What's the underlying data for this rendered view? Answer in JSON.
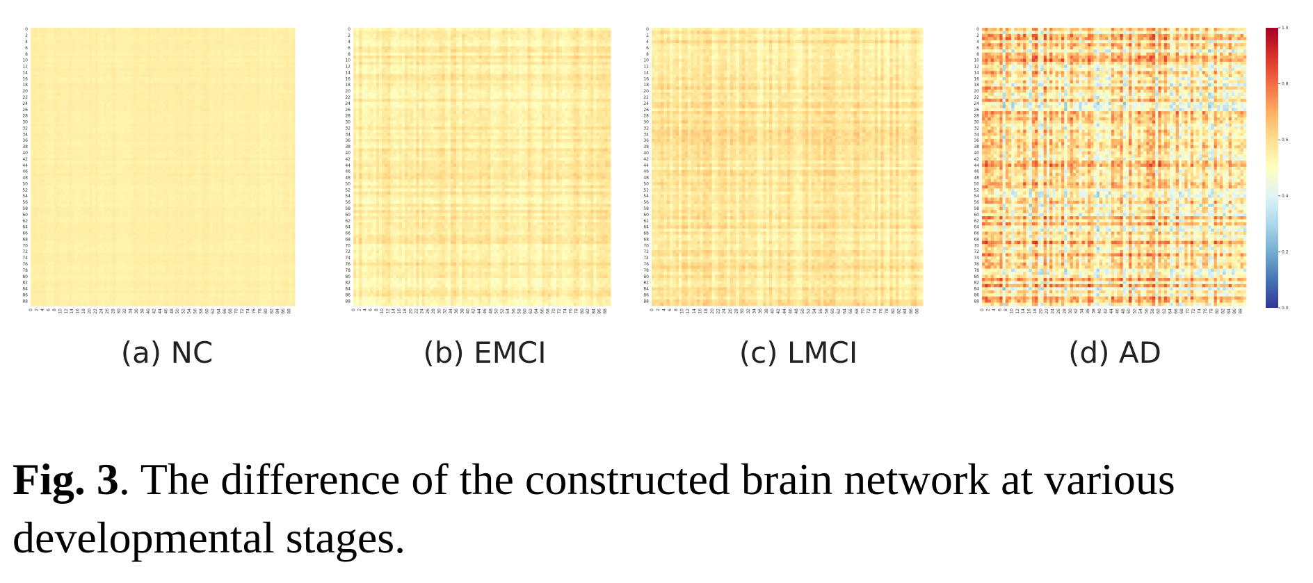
{
  "chart_data": {
    "type": "heatmap",
    "value_range": [
      0.0,
      1.0
    ],
    "colormap": "RdYlBu_r",
    "matrix_size": 90,
    "tick_labels": [
      "0",
      "2",
      "4",
      "6",
      "8",
      "10",
      "12",
      "14",
      "16",
      "18",
      "20",
      "22",
      "24",
      "26",
      "28",
      "30",
      "32",
      "34",
      "36",
      "38",
      "40",
      "42",
      "44",
      "46",
      "48",
      "50",
      "52",
      "54",
      "56",
      "58",
      "60",
      "62",
      "64",
      "66",
      "68",
      "70",
      "72",
      "74",
      "76",
      "78",
      "80",
      "82",
      "84",
      "86",
      "88"
    ],
    "colorbar": {
      "ticks": [
        0.0,
        0.2,
        0.4,
        0.6,
        0.8,
        1.0
      ],
      "tick_labels": [
        "0.0",
        "0.2",
        "0.4",
        "0.6",
        "0.8",
        "1.0"
      ]
    },
    "panels": [
      {
        "label": "(a) NC",
        "base": 0.55,
        "spread": 0.02
      },
      {
        "label": "(b) EMCI",
        "base": 0.56,
        "spread": 0.08
      },
      {
        "label": "(c) LMCI",
        "base": 0.57,
        "spread": 0.09
      },
      {
        "label": "(d) AD",
        "base": 0.57,
        "spread": 0.3
      }
    ]
  },
  "caption": {
    "fig_label": "Fig. 3",
    "text": ".  The difference of the constructed brain network at various developmental stages."
  }
}
